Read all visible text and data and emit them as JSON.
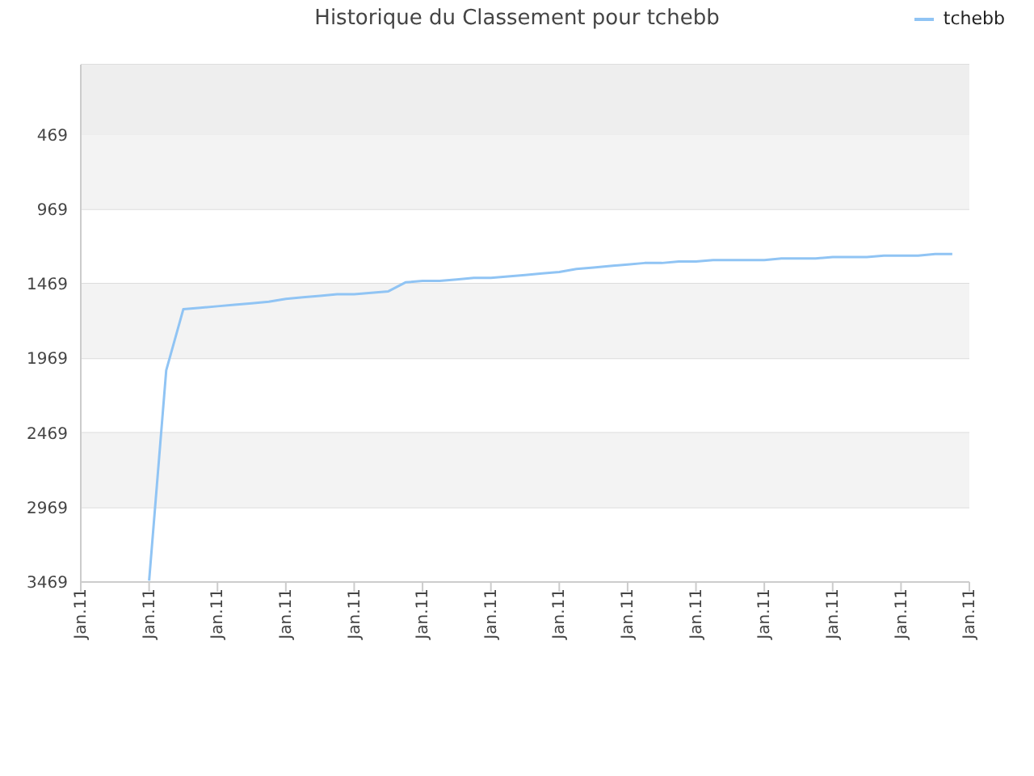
{
  "chart_data": {
    "type": "line",
    "title": "Historique du Classement pour tchebb",
    "categories": [
      "Jan.11",
      null,
      null,
      null,
      "Jan.11",
      null,
      null,
      null,
      "Jan.11",
      null,
      null,
      null,
      "Jan.11",
      null,
      null,
      null,
      "Jan.11",
      null,
      null,
      null,
      "Jan.11",
      null,
      null,
      null,
      "Jan.11",
      null,
      null,
      null,
      "Jan.11",
      null,
      null,
      null,
      "Jan.11",
      null,
      null,
      null,
      "Jan.11",
      null,
      null,
      null,
      "Jan.11",
      null,
      null,
      null,
      "Jan.11",
      null,
      null,
      null,
      "Jan.11",
      null,
      null,
      null,
      "Jan.11"
    ],
    "series": [
      {
        "name": "tchebb",
        "color": "#90c4f4",
        "values": [
          null,
          null,
          null,
          null,
          3460,
          2050,
          1640,
          1630,
          1620,
          1610,
          1600,
          1590,
          1570,
          1560,
          1550,
          1540,
          1540,
          1530,
          1520,
          1460,
          1450,
          1450,
          1440,
          1430,
          1430,
          1420,
          1410,
          1400,
          1390,
          1370,
          1360,
          1350,
          1340,
          1330,
          1330,
          1320,
          1320,
          1310,
          1310,
          1310,
          1310,
          1300,
          1300,
          1300,
          1290,
          1290,
          1290,
          1280,
          1280,
          1280,
          1270,
          1270,
          null
        ]
      }
    ],
    "ylim": [
      3469,
      0
    ],
    "yticks": [
      469,
      969,
      1469,
      1969,
      2469,
      2969,
      3469
    ],
    "bands": [
      {
        "axis": "y",
        "from": 0,
        "to": 469,
        "color": "#eeeeee"
      },
      {
        "axis": "y",
        "from": 469,
        "to": 969,
        "color": "#f3f3f3"
      },
      {
        "axis": "y",
        "from": 1469,
        "to": 1969,
        "color": "#f3f3f3"
      },
      {
        "axis": "y",
        "from": 2469,
        "to": 2969,
        "color": "#f3f3f3"
      }
    ],
    "grid": "y",
    "legend": "top right",
    "marker": "none",
    "line_style": "solid"
  }
}
